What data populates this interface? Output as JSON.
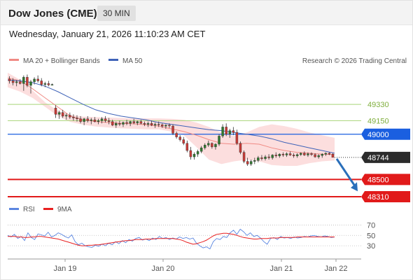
{
  "header": {
    "title": "Dow Jones (CME)",
    "timeframe": "30 MIN"
  },
  "datetime": "Wednesday, January 21, 2026 11:10:23 AM CET",
  "legend": {
    "ma20_bb": "MA 20 + Bollinger Bands",
    "ma50": "MA 50",
    "research": "Research © 2026 Trading Central",
    "rsi": "RSI",
    "ma9": "9MA"
  },
  "colors": {
    "bollinger": "#fbd3d3",
    "ma20": "#f08a84",
    "ma50": "#3f63b8",
    "candle_up": "#2f7a2f",
    "candle_down": "#c93a36",
    "support": "#e11a1a",
    "resistance": "#1a5fe0",
    "target": "#a8d478",
    "arrow": "#2a6fba",
    "rsi": "#5b86e0",
    "rsi_ma": "#e82020"
  },
  "chart_data": [
    {
      "type": "candlestick",
      "title": "Dow Jones (CME)",
      "timeframe": "30 MIN",
      "x_ticks": [
        "Jan 19",
        "Jan 20",
        "Jan 21",
        "Jan 22"
      ],
      "ylim": [
        48240,
        49710
      ],
      "candles": [
        [
          49610,
          49640,
          49560,
          49590
        ],
        [
          49590,
          49620,
          49540,
          49570
        ],
        [
          49570,
          49600,
          49530,
          49580
        ],
        [
          49580,
          49610,
          49550,
          49560
        ],
        [
          49560,
          49650,
          49480,
          49630
        ],
        [
          49630,
          49660,
          49520,
          49540
        ],
        [
          49540,
          49600,
          49450,
          49580
        ],
        [
          49580,
          49630,
          49550,
          49610
        ],
        [
          49610,
          49650,
          49570,
          49590
        ],
        [
          49590,
          49620,
          49530,
          49550
        ],
        [
          49550,
          49580,
          49520,
          49560
        ],
        [
          49560,
          49590,
          49530,
          49545
        ],
        [
          49545,
          49560,
          49540,
          49550
        ],
        [
          49290,
          49320,
          49180,
          49220
        ],
        [
          49220,
          49260,
          49170,
          49240
        ],
        [
          49240,
          49270,
          49180,
          49200
        ],
        [
          49200,
          49230,
          49160,
          49210
        ],
        [
          49210,
          49240,
          49170,
          49190
        ],
        [
          49190,
          49220,
          49150,
          49180
        ],
        [
          49180,
          49210,
          49140,
          49170
        ],
        [
          49170,
          49200,
          49120,
          49140
        ],
        [
          49140,
          49180,
          49100,
          49170
        ],
        [
          49170,
          49200,
          49130,
          49150
        ],
        [
          49150,
          49180,
          49110,
          49160
        ],
        [
          49160,
          49190,
          49130,
          49140
        ],
        [
          49140,
          49170,
          49110,
          49150
        ],
        [
          49150,
          49190,
          49120,
          49170
        ],
        [
          49170,
          49200,
          49130,
          49150
        ],
        [
          49150,
          49180,
          49110,
          49140
        ],
        [
          49140,
          49160,
          49090,
          49100
        ],
        [
          49100,
          49140,
          49070,
          49120
        ],
        [
          49120,
          49150,
          49090,
          49110
        ],
        [
          49110,
          49140,
          49080,
          49130
        ],
        [
          49130,
          49160,
          49100,
          49120
        ],
        [
          49120,
          49150,
          49090,
          49140
        ],
        [
          49140,
          49170,
          49110,
          49125
        ],
        [
          49125,
          49150,
          49100,
          49140
        ],
        [
          49140,
          49160,
          49110,
          49120
        ],
        [
          49120,
          49140,
          49090,
          49110
        ],
        [
          49110,
          49140,
          49080,
          49120
        ],
        [
          49120,
          49150,
          49090,
          49100
        ],
        [
          49100,
          49130,
          49070,
          49110
        ],
        [
          49110,
          49140,
          49080,
          49105
        ],
        [
          49105,
          49120,
          49070,
          49090
        ],
        [
          49090,
          49110,
          49060,
          49100
        ],
        [
          49100,
          49120,
          49070,
          49095
        ],
        [
          49090,
          49110,
          48990,
          49010
        ],
        [
          49010,
          49030,
          48950,
          48970
        ],
        [
          48970,
          48990,
          48920,
          48940
        ],
        [
          48940,
          48970,
          48880,
          48900
        ],
        [
          48900,
          48930,
          48800,
          48820
        ],
        [
          48820,
          48860,
          48720,
          48750
        ],
        [
          48750,
          48800,
          48720,
          48780
        ],
        [
          48780,
          48830,
          48750,
          48810
        ],
        [
          48810,
          48870,
          48790,
          48850
        ],
        [
          48850,
          48900,
          48830,
          48880
        ],
        [
          48880,
          48930,
          48860,
          48900
        ],
        [
          48900,
          48910,
          48840,
          48860
        ],
        [
          48860,
          48900,
          48830,
          48890
        ],
        [
          48890,
          49000,
          48870,
          48980
        ],
        [
          48980,
          49110,
          48960,
          49080
        ],
        [
          49080,
          49120,
          48980,
          49000
        ],
        [
          49000,
          49060,
          48960,
          49040
        ],
        [
          49040,
          49080,
          48990,
          49020
        ],
        [
          49020,
          49050,
          48880,
          48900
        ],
        [
          48900,
          48920,
          48780,
          48800
        ],
        [
          48800,
          48820,
          48680,
          48700
        ],
        [
          48700,
          48740,
          48650,
          48670
        ],
        [
          48670,
          48720,
          48650,
          48700
        ],
        [
          48700,
          48740,
          48670,
          48710
        ],
        [
          48710,
          48760,
          48690,
          48740
        ],
        [
          48740,
          48770,
          48710,
          48730
        ],
        [
          48730,
          48770,
          48710,
          48750
        ],
        [
          48750,
          48780,
          48720,
          48740
        ],
        [
          48740,
          48780,
          48720,
          48770
        ],
        [
          48770,
          48800,
          48740,
          48760
        ],
        [
          48760,
          48790,
          48740,
          48780
        ],
        [
          48780,
          48800,
          48750,
          48770
        ],
        [
          48770,
          48800,
          48750,
          48785
        ],
        [
          48785,
          48810,
          48760,
          48770
        ],
        [
          48770,
          48790,
          48740,
          48760
        ],
        [
          48760,
          48790,
          48740,
          48775
        ],
        [
          48775,
          48800,
          48760,
          48790
        ],
        [
          48790,
          48810,
          48760,
          48770
        ],
        [
          48770,
          48800,
          48750,
          48785
        ],
        [
          48785,
          48800,
          48760,
          48775
        ],
        [
          48775,
          48790,
          48740,
          48750
        ],
        [
          48750,
          48780,
          48730,
          48765
        ],
        [
          48765,
          48790,
          48740,
          48780
        ],
        [
          48780,
          48800,
          48760,
          48790
        ],
        [
          48790,
          48800,
          48770,
          48780
        ],
        [
          48780,
          48790,
          48750,
          48744
        ]
      ],
      "bollinger_upper": [
        49680,
        49600,
        49480,
        49350,
        49260,
        49215,
        49195,
        49190,
        49185,
        49180,
        49175,
        49175,
        49175,
        49170,
        49160,
        49130,
        49080,
        49020,
        48980,
        49020,
        49080,
        49110,
        49090,
        49060,
        49020,
        48990,
        48960
      ],
      "bollinger_lower": [
        49520,
        49470,
        49400,
        49300,
        49200,
        49135,
        49105,
        49085,
        49075,
        49065,
        49060,
        49055,
        49055,
        49030,
        48990,
        48860,
        48720,
        48670,
        48700,
        48720,
        48700,
        48660,
        48650,
        48650,
        48680,
        48700,
        48710
      ],
      "ma20": [
        49620,
        49590,
        49500,
        49400,
        49300,
        49200,
        49160,
        49140,
        49130,
        49120,
        49115,
        49105,
        49090,
        49060,
        49030,
        48990,
        48940,
        48900,
        48890,
        48900,
        48890,
        48850,
        48820,
        48800,
        48790,
        48780,
        48775
      ],
      "ma50": [
        49600,
        49590,
        49570,
        49530,
        49470,
        49400,
        49330,
        49270,
        49230,
        49200,
        49180,
        49160,
        49130,
        49110,
        49090,
        49070,
        49050,
        49040,
        49020,
        49000,
        48980,
        48950,
        48910,
        48880,
        48850,
        48820,
        48790
      ],
      "levels": [
        {
          "value": 49330,
          "label": "49330",
          "kind": "target"
        },
        {
          "value": 49150,
          "label": "49150",
          "kind": "target"
        },
        {
          "value": 49000,
          "label": "49000",
          "kind": "resistance"
        },
        {
          "value": 48744,
          "label": "48744",
          "kind": "last"
        },
        {
          "value": 48500,
          "label": "48500",
          "kind": "support"
        },
        {
          "value": 48310,
          "label": "48310",
          "kind": "support"
        }
      ],
      "arrow_target": 48370
    },
    {
      "type": "line",
      "title": "RSI",
      "yticks": [
        70,
        50,
        30
      ],
      "ylim": [
        10,
        80
      ],
      "rsi": [
        50,
        47,
        52,
        44,
        48,
        40,
        55,
        46,
        42,
        53,
        51,
        49,
        56,
        47,
        50,
        55,
        52,
        48,
        45,
        51,
        38,
        32,
        35,
        30,
        28,
        27,
        31,
        29,
        33,
        30,
        35,
        32,
        38,
        34,
        40,
        36,
        42,
        39,
        44,
        46,
        41,
        43,
        40,
        45,
        42,
        48,
        44,
        46,
        42,
        45,
        43,
        47,
        44,
        46,
        43,
        45,
        35,
        30,
        26,
        28,
        24,
        38,
        44,
        42,
        48,
        46,
        55,
        60,
        52,
        62,
        57,
        50,
        55,
        48,
        50,
        45,
        38,
        33,
        44,
        46,
        42,
        48,
        45,
        46,
        44,
        47,
        45,
        46,
        48,
        47,
        49,
        50,
        48,
        47,
        49,
        48,
        46,
        47
      ],
      "ma9": [
        48,
        48,
        48,
        47,
        47,
        46,
        46,
        47,
        47,
        48,
        48,
        47,
        46,
        45,
        44,
        43,
        41,
        39,
        37,
        35,
        33,
        31,
        30,
        30,
        31,
        31,
        32,
        32,
        33,
        34,
        35,
        36,
        37,
        38,
        39,
        40,
        40,
        41,
        42,
        42,
        42,
        43,
        43,
        43,
        44,
        44,
        44,
        44,
        44,
        44,
        43,
        42,
        40,
        37,
        35,
        33,
        34,
        36,
        38,
        41,
        45,
        49,
        52,
        53,
        54,
        54,
        53,
        52,
        50,
        48,
        46,
        45,
        44,
        43,
        43,
        44,
        44,
        44,
        45,
        45,
        45,
        46,
        46,
        46,
        46,
        46,
        47,
        47,
        47,
        47,
        47,
        47,
        47,
        47,
        47,
        47,
        47,
        47
      ],
      "x_ticks": [
        "Jan 19",
        "Jan 20",
        "Jan 21",
        "Jan 22"
      ]
    }
  ]
}
